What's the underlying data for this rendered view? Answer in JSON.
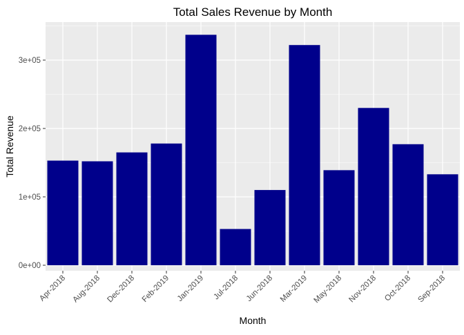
{
  "chart_data": {
    "type": "bar",
    "title": "Total Sales Revenue by Month",
    "xlabel": "Month",
    "ylabel": "Total Revenue",
    "categories": [
      "Apr-2018",
      "Aug-2018",
      "Dec-2018",
      "Feb-2019",
      "Jan-2019",
      "Jul-2018",
      "Jun-2018",
      "Mar-2019",
      "May-2018",
      "Nov-2018",
      "Oct-2018",
      "Sep-2018"
    ],
    "values": [
      153000,
      152000,
      165000,
      178000,
      337000,
      53000,
      110000,
      322000,
      139000,
      230000,
      177000,
      133000
    ],
    "ylim": [
      0,
      350000
    ],
    "y_ticks": [
      0,
      100000,
      200000,
      300000
    ],
    "y_tick_labels": [
      "0e+00",
      "1e+05",
      "2e+05",
      "3e+05"
    ],
    "grid": true,
    "legend": "none",
    "colors": {
      "bar": "#00008B",
      "panel_background": "#EBEBEB",
      "grid": "#FFFFFF",
      "tick_mark": "#333333",
      "tick_text": "#4D4D4D"
    }
  }
}
